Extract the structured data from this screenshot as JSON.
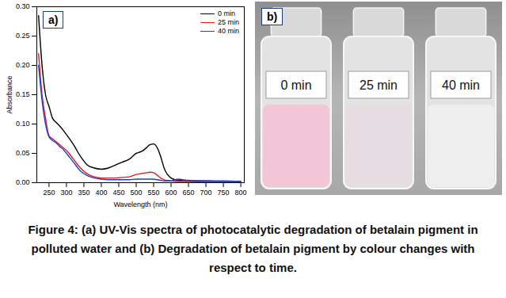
{
  "chart_data": {
    "type": "line",
    "annotations": [
      "a)"
    ],
    "x_label": "Wavelength (nm)",
    "y_label": "Absorbance",
    "x": [
      220,
      230,
      240,
      250,
      260,
      270,
      280,
      290,
      300,
      320,
      340,
      360,
      380,
      400,
      420,
      440,
      460,
      480,
      500,
      510,
      520,
      530,
      540,
      550,
      560,
      570,
      580,
      600,
      620,
      650,
      700,
      750,
      800
    ],
    "series": [
      {
        "name": "0 min",
        "color": "#000000",
        "values": [
          0.285,
          0.2,
          0.15,
          0.13,
          0.11,
          0.103,
          0.097,
          0.09,
          0.082,
          0.065,
          0.045,
          0.03,
          0.025,
          0.023,
          0.025,
          0.03,
          0.035,
          0.04,
          0.05,
          0.052,
          0.055,
          0.06,
          0.065,
          0.066,
          0.06,
          0.045,
          0.025,
          0.008,
          0.004,
          0.003,
          0.003,
          0.002,
          0.002
        ]
      },
      {
        "name": "25 min",
        "color": "#e41a1c",
        "values": [
          0.22,
          0.15,
          0.11,
          0.08,
          0.075,
          0.07,
          0.065,
          0.06,
          0.055,
          0.04,
          0.025,
          0.015,
          0.01,
          0.008,
          0.008,
          0.008,
          0.009,
          0.01,
          0.014,
          0.015,
          0.016,
          0.017,
          0.018,
          0.017,
          0.013,
          0.008,
          0.005,
          0.003,
          0.002,
          0.002,
          0.001,
          0.001,
          0.001
        ]
      },
      {
        "name": "40 min",
        "color": "#1f3fd1",
        "values": [
          0.2,
          0.14,
          0.1,
          0.078,
          0.072,
          0.068,
          0.062,
          0.057,
          0.05,
          0.035,
          0.02,
          0.012,
          0.008,
          0.006,
          0.005,
          0.005,
          0.005,
          0.005,
          0.006,
          0.006,
          0.006,
          0.006,
          0.006,
          0.006,
          0.005,
          0.004,
          0.003,
          0.003,
          0.006,
          0.004,
          0.003,
          0.003,
          0.002
        ]
      }
    ],
    "xlim": [
      215,
      810
    ],
    "xticks": [
      250,
      300,
      350,
      400,
      450,
      500,
      550,
      600,
      650,
      700,
      750,
      800
    ],
    "ylim": [
      0,
      0.3
    ],
    "yticks": [
      {
        "value": 0,
        "label": "0.00"
      },
      {
        "value": 0.05,
        "label": "0.05"
      },
      {
        "value": 0.1,
        "label": "0.10"
      },
      {
        "value": 0.15,
        "label": "0.15"
      },
      {
        "value": 0.2,
        "label": "0.20"
      },
      {
        "value": 0.25,
        "label": "0.25"
      },
      {
        "value": 0.3,
        "label": "0.30"
      }
    ],
    "legend": "top-right",
    "grid": false
  },
  "photo": {
    "panel_label": "b)",
    "vials": [
      {
        "label": "0 min",
        "color": "#f2c6d6"
      },
      {
        "label": "25 min",
        "color": "#e6dde2"
      },
      {
        "label": "40 min",
        "color": "#eeeeee"
      }
    ]
  },
  "caption": "Figure 4: (a) UV-Vis spectra of photocatalytic degradation of betalain pigment in polluted water and (b) Degradation of betalain pigment by colour changes with respect to time."
}
